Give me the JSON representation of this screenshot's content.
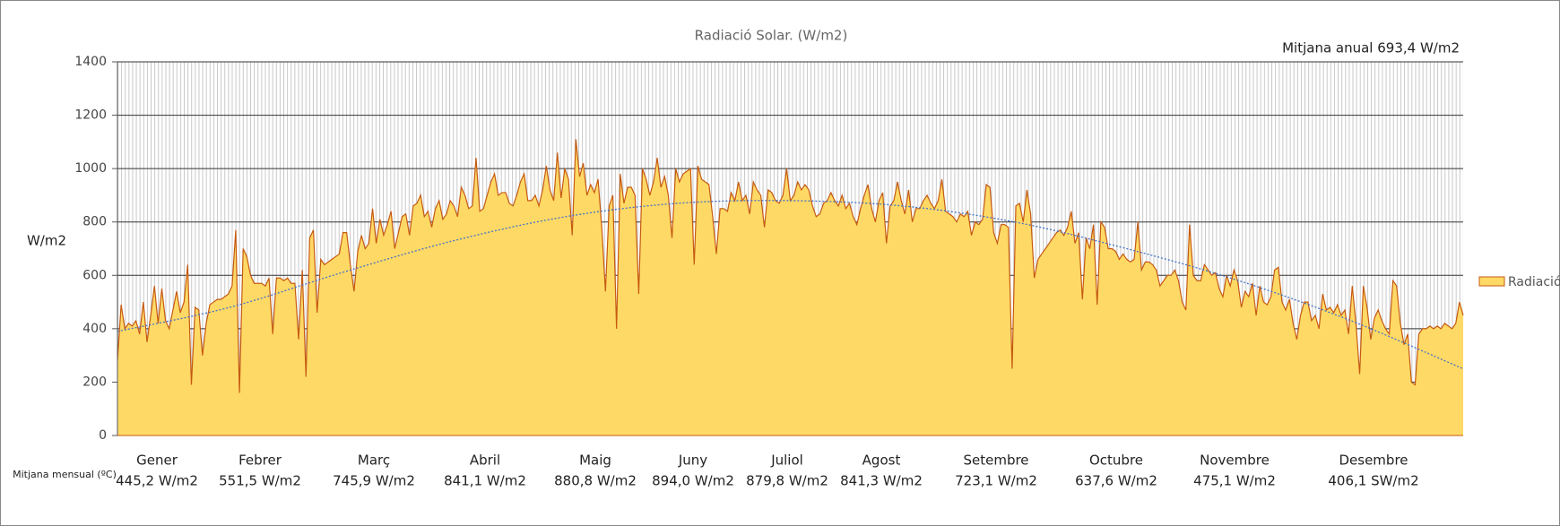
{
  "chart_data": {
    "type": "area",
    "title": "Radiació Solar. (W/m2)",
    "y_label": "W/m2",
    "annotation": "Mitjana anual 693,4 W/m2",
    "months_caption": "Mitjana mensual (ºC)",
    "months": [
      {
        "name": "Gener",
        "average": "445,2 W/m2"
      },
      {
        "name": "Febrer",
        "average": "551,5 W/m2"
      },
      {
        "name": "Març",
        "average": "745,9 W/m2"
      },
      {
        "name": "Abril",
        "average": "841,1 W/m2"
      },
      {
        "name": "Maig",
        "average": "880,8 W/m2"
      },
      {
        "name": "Juny",
        "average": "894,0 W/m2"
      },
      {
        "name": "Juliol",
        "average": "879,8 W/m2"
      },
      {
        "name": "Agost",
        "average": "841,3 W/m2"
      },
      {
        "name": "Setembre",
        "average": "723,1 W/m2"
      },
      {
        "name": "Octubre",
        "average": "637,6 W/m2"
      },
      {
        "name": "Novembre",
        "average": "475,1 W/m2"
      },
      {
        "name": "Desembre",
        "average": "406,1 SW/m2"
      }
    ],
    "ylim": [
      0,
      1400
    ],
    "yticks": [
      0,
      200,
      400,
      600,
      800,
      1000,
      1200,
      1400
    ],
    "grid": true,
    "legend": "right",
    "series": [
      {
        "name": "Radiació",
        "color": "#ffd966",
        "line_color": "#c55a11",
        "values": [
          280,
          490,
          400,
          420,
          410,
          430,
          380,
          500,
          350,
          450,
          560,
          420,
          550,
          430,
          400,
          470,
          540,
          460,
          500,
          640,
          190,
          480,
          470,
          300,
          420,
          490,
          500,
          510,
          510,
          520,
          530,
          560,
          770,
          160,
          700,
          670,
          600,
          570,
          570,
          570,
          560,
          590,
          380,
          590,
          590,
          580,
          590,
          570,
          570,
          360,
          620,
          220,
          740,
          770,
          460,
          660,
          640,
          650,
          660,
          670,
          680,
          760,
          760,
          640,
          540,
          690,
          750,
          700,
          720,
          850,
          720,
          810,
          750,
          790,
          840,
          700,
          760,
          820,
          830,
          750,
          860,
          870,
          900,
          820,
          840,
          780,
          850,
          880,
          810,
          830,
          880,
          860,
          820,
          930,
          900,
          850,
          860,
          1040,
          840,
          850,
          900,
          950,
          980,
          900,
          910,
          910,
          870,
          860,
          900,
          950,
          980,
          880,
          880,
          900,
          860,
          920,
          1010,
          920,
          880,
          1060,
          890,
          1000,
          960,
          750,
          1110,
          970,
          1020,
          900,
          940,
          910,
          960,
          780,
          540,
          860,
          900,
          400,
          980,
          870,
          930,
          930,
          900,
          530,
          1000,
          960,
          900,
          950,
          1040,
          930,
          970,
          900,
          740,
          1000,
          950,
          980,
          990,
          1000,
          640,
          1010,
          960,
          950,
          940,
          820,
          680,
          850,
          850,
          840,
          910,
          880,
          950,
          880,
          900,
          830,
          950,
          920,
          900,
          780,
          920,
          910,
          880,
          870,
          900,
          1000,
          880,
          900,
          950,
          920,
          940,
          920,
          860,
          820,
          830,
          870,
          880,
          910,
          880,
          860,
          900,
          850,
          870,
          820,
          790,
          850,
          900,
          940,
          850,
          800,
          880,
          910,
          720,
          860,
          880,
          950,
          880,
          830,
          920,
          800,
          850,
          850,
          880,
          900,
          870,
          850,
          880,
          960,
          840,
          830,
          820,
          800,
          830,
          820,
          840,
          750,
          800,
          790,
          810,
          940,
          930,
          760,
          720,
          790,
          790,
          780,
          250,
          860,
          870,
          800,
          920,
          830,
          590,
          660,
          680,
          700,
          720,
          740,
          760,
          770,
          750,
          780,
          840,
          720,
          760,
          510,
          740,
          700,
          790,
          490,
          800,
          780,
          700,
          700,
          690,
          660,
          680,
          660,
          650,
          660,
          800,
          620,
          650,
          650,
          640,
          620,
          560,
          580,
          600,
          600,
          620,
          580,
          500,
          470,
          790,
          600,
          580,
          580,
          640,
          620,
          600,
          610,
          550,
          520,
          600,
          560,
          620,
          580,
          480,
          540,
          520,
          570,
          450,
          560,
          500,
          490,
          520,
          620,
          630,
          500,
          470,
          510,
          420,
          360,
          450,
          500,
          500,
          430,
          450,
          400,
          530,
          470,
          480,
          460,
          490,
          450,
          470,
          380,
          560,
          420,
          230,
          560,
          480,
          360,
          440,
          470,
          430,
          400,
          380,
          580,
          560,
          420,
          340,
          380,
          200,
          190,
          380,
          400,
          400,
          410,
          400,
          410,
          400,
          420,
          410,
          400,
          420,
          500,
          450
        ]
      }
    ],
    "trendline": {
      "color": "#4472c4",
      "values": [
        390,
        480,
        610,
        730,
        820,
        870,
        880,
        860,
        800,
        700,
        580,
        430,
        250
      ]
    }
  }
}
